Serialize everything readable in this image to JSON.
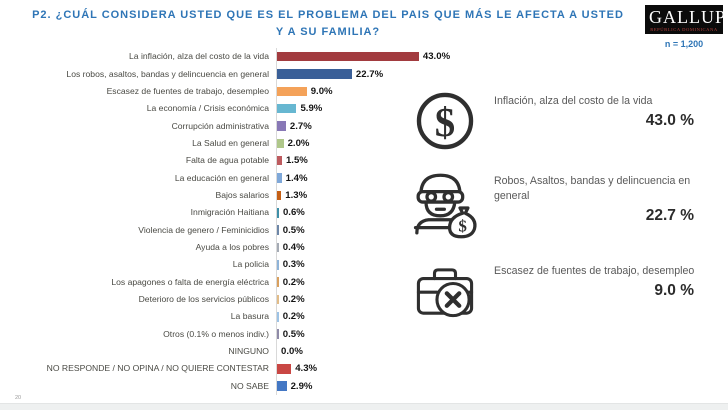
{
  "header": {
    "title": "P2. ¿CUÁL CONSIDERA USTED QUE ES EL PROBLEMA DEL PAIS QUE MÁS LE AFECTA A USTED Y A SU FAMILIA?",
    "logo_main": "GALLUP",
    "logo_sub": "REPÚBLICA DOMINICANA",
    "sample_label": "n = 1,200"
  },
  "colors": {
    "title_blue": "#2E75B6",
    "axis_line": "#D9D9D9",
    "value_text": "#141414",
    "label_text": "#4A4A44"
  },
  "chart_data": {
    "type": "bar",
    "orientation": "horizontal",
    "title": "P2. ¿Cuál considera usted que es el problema del pais que más le afecta a usted y a su familia?",
    "xlabel": "",
    "ylabel": "",
    "xlim": [
      0,
      45
    ],
    "grid": false,
    "categories": [
      "La inflación, alza del costo de la vida",
      "Los robos, asaltos, bandas y delincuencia en general",
      "Escasez de fuentes de trabajo, desempleo",
      "La economía / Crisis económica",
      "Corrupción administrativa",
      "La Salud en general",
      "Falta de agua potable",
      "La educación en general",
      "Bajos salarios",
      "Inmigración Haitiana",
      "Violencia de genero / Feminicidios",
      "Ayuda a los pobres",
      "La policia",
      "Los apagones o falta de energía eléctrica",
      "Deterioro de los servicios públicos",
      "La basura",
      "Otros (0.1% o menos indiv.)",
      "NINGUNO",
      "NO RESPONDE / NO OPINA / NO QUIERE CONTESTAR",
      "NO SABE"
    ],
    "values": [
      43.0,
      22.7,
      9.0,
      5.9,
      2.7,
      2.0,
      1.5,
      1.4,
      1.3,
      0.6,
      0.5,
      0.4,
      0.3,
      0.2,
      0.2,
      0.2,
      0.5,
      0.0,
      4.3,
      2.9
    ],
    "display_values": [
      "43.0%",
      "22.7%",
      "9.0%",
      "5.9%",
      "2.7%",
      "2.0%",
      "1.5%",
      "1.4%",
      "1.3%",
      "0.6%",
      "0.5%",
      "0.4%",
      "0.3%",
      "0.2%",
      "0.2%",
      "0.2%",
      "0.5%",
      "0.0%",
      "4.3%",
      "2.9%"
    ],
    "bar_colors": [
      "#A23B3F",
      "#3A5F98",
      "#F4A259",
      "#67B7D1",
      "#8878B6",
      "#AFC78A",
      "#BE5B5F",
      "#7FA8D9",
      "#C55F15",
      "#3E8FA8",
      "#6E87A8",
      "#A5ABB5",
      "#8FB4D9",
      "#D9A05E",
      "#E2BC88",
      "#9DC3E6",
      "#8F8BA8",
      "#FFFFFF",
      "#C94744",
      "#4377C4"
    ]
  },
  "highlights": {
    "items": [
      {
        "icon": "dollar-circle-icon",
        "text": "Inflación, alza del costo de la vida",
        "pct": "43.0 %"
      },
      {
        "icon": "robber-icon",
        "text": "Robos, Asaltos, bandas y delincuencia en general",
        "pct": "22.7 %"
      },
      {
        "icon": "briefcase-x-icon",
        "text": "Escasez de fuentes de trabajo, desempleo",
        "pct": "9.0 %"
      }
    ]
  },
  "footer": {
    "page_number": "20"
  }
}
